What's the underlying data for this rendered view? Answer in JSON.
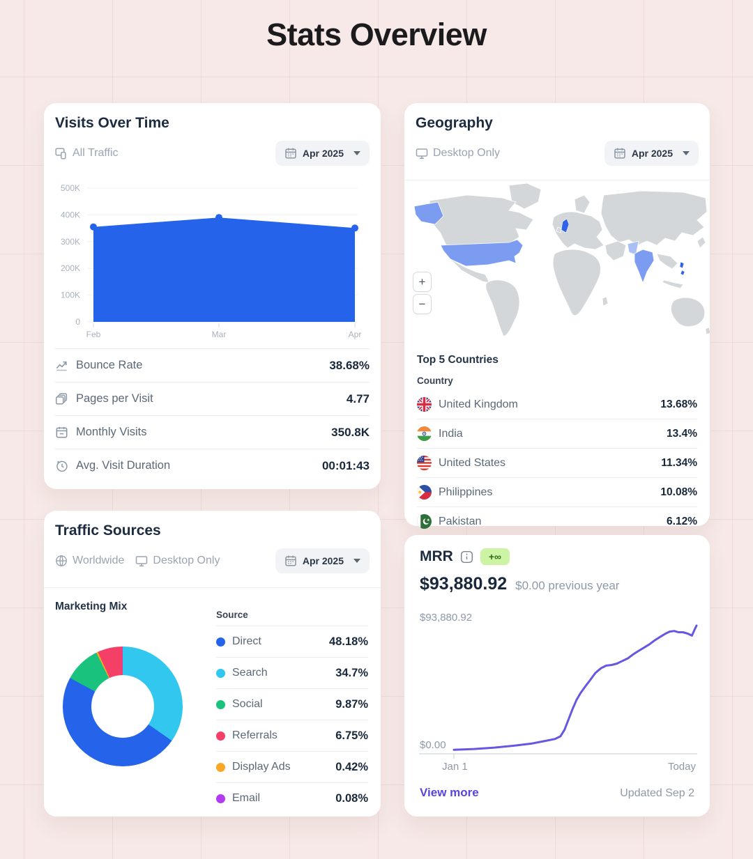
{
  "page": {
    "title": "Stats Overview"
  },
  "colors": {
    "accent_blue": "#2563eb",
    "map_land": "#d3d7da",
    "map_highlight": "#7b9cf0",
    "map_highlight_strong": "#2f63e8",
    "map_highlight_light": "#a9c0f6",
    "mrr_line": "#6557e1",
    "link_purple": "#5646df",
    "badge_bg": "#cdf4a4",
    "badge_text": "#2c6a17"
  },
  "visits_card": {
    "title": "Visits Over Time",
    "filter_label": "All Traffic",
    "period": "Apr 2025",
    "stats": [
      {
        "icon": "trend-icon",
        "label": "Bounce Rate",
        "value": "38.68%"
      },
      {
        "icon": "pages-icon",
        "label": "Pages per Visit",
        "value": "4.77"
      },
      {
        "icon": "calendar2-icon",
        "label": "Monthly Visits",
        "value": "350.8K"
      },
      {
        "icon": "clock-icon",
        "label": "Avg. Visit Duration",
        "value": "00:01:43"
      }
    ]
  },
  "geography_card": {
    "title": "Geography",
    "filter_label": "Desktop Only",
    "period": "Apr 2025",
    "zoom_in": "+",
    "zoom_out": "−",
    "list_title": "Top 5 Countries",
    "column_header": "Country",
    "highlighted_countries": [
      "United States",
      "United Kingdom",
      "India",
      "Philippines",
      "Pakistan"
    ],
    "countries": [
      {
        "flag": "uk",
        "name": "United Kingdom",
        "value": "13.68%"
      },
      {
        "flag": "in",
        "name": "India",
        "value": "13.4%"
      },
      {
        "flag": "us",
        "name": "United States",
        "value": "11.34%"
      },
      {
        "flag": "ph",
        "name": "Philippines",
        "value": "10.08%"
      },
      {
        "flag": "pk",
        "name": "Pakistan",
        "value": "6.12%"
      }
    ]
  },
  "traffic_card": {
    "title": "Traffic Sources",
    "filter_worldwide": "Worldwide",
    "filter_desktop": "Desktop Only",
    "period": "Apr 2025",
    "chart_title": "Marketing Mix",
    "legend_header": "Source"
  },
  "mrr_card": {
    "title": "MRR",
    "badge": "+∞",
    "current_value": "$93,880.92",
    "previous_label": "$0.00 previous year",
    "chart_max_label": "$93,880.92",
    "chart_min_label": "$0.00",
    "x_start": "Jan 1",
    "x_end": "Today",
    "view_more": "View more",
    "updated": "Updated Sep 2"
  },
  "chart_data": [
    {
      "id": "visits_over_time",
      "type": "area",
      "title": "Visits Over Time",
      "x": [
        "Feb",
        "Mar",
        "Apr"
      ],
      "values": [
        355000,
        390000,
        350800
      ],
      "ylim": [
        0,
        500000
      ],
      "yticks": [
        "500K",
        "400K",
        "300K",
        "200K",
        "100K",
        "0"
      ],
      "fill_color": "#2563eb",
      "grid": true,
      "legend_position": "none"
    },
    {
      "id": "geography_top5",
      "type": "table",
      "title": "Top 5 Countries",
      "categories": [
        "United Kingdom",
        "India",
        "United States",
        "Philippines",
        "Pakistan"
      ],
      "values": [
        13.68,
        13.4,
        11.34,
        10.08,
        6.12
      ],
      "unit": "%"
    },
    {
      "id": "marketing_mix",
      "type": "pie",
      "title": "Marketing Mix",
      "donut": true,
      "categories": [
        "Direct",
        "Search",
        "Social",
        "Referrals",
        "Display Ads",
        "Email"
      ],
      "values": [
        48.18,
        34.7,
        9.87,
        6.75,
        0.42,
        0.08
      ],
      "labels": [
        "48.18%",
        "34.7%",
        "9.87%",
        "6.75%",
        "0.42%",
        "0.08%"
      ],
      "colors": [
        "#2563eb",
        "#31c7ef",
        "#19c37d",
        "#f43f66",
        "#f9a825",
        "#b23af2"
      ],
      "draw_order": [
        1,
        0,
        2,
        4,
        3,
        5
      ],
      "legend_position": "right"
    },
    {
      "id": "mrr",
      "type": "line",
      "title": "MRR",
      "color": "#6557e1",
      "y_min_label": "$0.00",
      "y_max_label": "$93,880.92",
      "x_labels": [
        "Jan 1",
        "Today"
      ],
      "points": [
        [
          0,
          1
        ],
        [
          8.3,
          1.6
        ],
        [
          16.7,
          2.7
        ],
        [
          25,
          4.3
        ],
        [
          31.9,
          5.9
        ],
        [
          37.5,
          8
        ],
        [
          41.7,
          9.6
        ],
        [
          43.9,
          11.7
        ],
        [
          45.6,
          17
        ],
        [
          47.2,
          25
        ],
        [
          48.9,
          33.5
        ],
        [
          50.6,
          41
        ],
        [
          52.2,
          46.3
        ],
        [
          54.2,
          51.6
        ],
        [
          56.1,
          56.4
        ],
        [
          58.3,
          62.2
        ],
        [
          60.6,
          66
        ],
        [
          62.8,
          68.1
        ],
        [
          65,
          68.6
        ],
        [
          67.2,
          69.7
        ],
        [
          69.4,
          71.8
        ],
        [
          71.7,
          73.9
        ],
        [
          73.9,
          77.1
        ],
        [
          76.1,
          79.8
        ],
        [
          78.3,
          82.4
        ],
        [
          80.6,
          85.1
        ],
        [
          82.8,
          88.3
        ],
        [
          85,
          91
        ],
        [
          87.2,
          93.6
        ],
        [
          88.9,
          95.2
        ],
        [
          90.8,
          95.7
        ],
        [
          92.5,
          94.7
        ],
        [
          94.4,
          94.7
        ],
        [
          96.4,
          93.6
        ],
        [
          98.1,
          92
        ],
        [
          99.2,
          96.8
        ],
        [
          100,
          100
        ]
      ]
    }
  ]
}
